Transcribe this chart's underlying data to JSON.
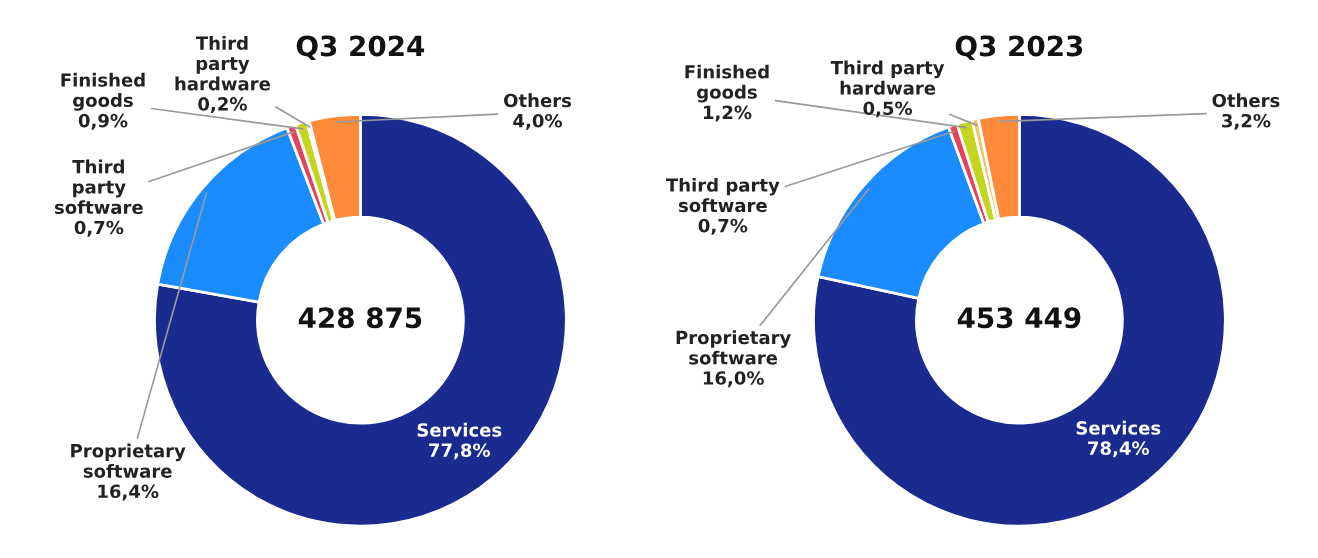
{
  "chart_data": [
    {
      "type": "donut",
      "title": "Q3 2024",
      "categories": [
        "Services",
        "Proprietary software",
        "Third party software",
        "Finished goods",
        "Third party hardware",
        "Others"
      ],
      "values": [
        77.8,
        16.4,
        0.7,
        0.9,
        0.2,
        4.0
      ],
      "value_labels": [
        "77,8%",
        "16,4%",
        "0,7%",
        "0,9%",
        "0,2%",
        "4,0%"
      ],
      "colors": [
        "#1a2a8e",
        "#1a8cff",
        "#e8405a",
        "#c5d51f",
        "#f5c060",
        "#ff8a3a"
      ],
      "annotations": [
        "428 875"
      ]
    },
    {
      "type": "donut",
      "title": "Q3 2023",
      "categories": [
        "Services",
        "Proprietary software",
        "Third party software",
        "Finished goods",
        "Third party hardware",
        "Others"
      ],
      "values": [
        78.4,
        16.0,
        0.7,
        1.2,
        0.5,
        3.2
      ],
      "value_labels": [
        "78,4%",
        "16,0%",
        "0,7%",
        "1,2%",
        "0,5%",
        "3,2%"
      ],
      "colors": [
        "#1a2a8e",
        "#1a8cff",
        "#e8405a",
        "#c5d51f",
        "#f5c060",
        "#ff8a3a"
      ],
      "annotations": [
        "453 449"
      ]
    }
  ]
}
